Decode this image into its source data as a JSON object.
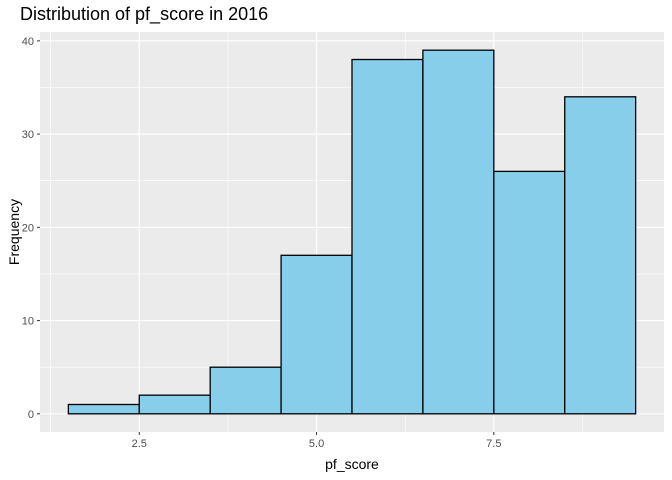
{
  "chart_data": {
    "type": "bar",
    "title": "Distribution of pf_score in 2016",
    "xlabel": "pf_score",
    "ylabel": "Frequency",
    "bins": [
      {
        "x0": 1.5,
        "x1": 2.5,
        "count": 1
      },
      {
        "x0": 2.5,
        "x1": 3.5,
        "count": 2
      },
      {
        "x0": 3.5,
        "x1": 4.5,
        "count": 5
      },
      {
        "x0": 4.5,
        "x1": 5.5,
        "count": 17
      },
      {
        "x0": 5.5,
        "x1": 6.5,
        "count": 38
      },
      {
        "x0": 6.5,
        "x1": 7.5,
        "count": 39
      },
      {
        "x0": 7.5,
        "x1": 8.5,
        "count": 26
      },
      {
        "x0": 8.5,
        "x1": 9.5,
        "count": 34
      }
    ],
    "xlim": [
      1.1,
      9.9
    ],
    "ylim": [
      -1.95,
      40.95
    ],
    "xticks": [
      2.5,
      5.0,
      7.5
    ],
    "xtick_labels": [
      "2.5",
      "5.0",
      "7.5"
    ],
    "yticks": [
      0,
      10,
      20,
      30,
      40
    ],
    "ytick_labels": [
      "0",
      "10",
      "20",
      "30",
      "40"
    ],
    "grid": true,
    "colors": {
      "panel": "#ebebeb",
      "grid_major": "#ffffff",
      "bar_fill": "#87ceeb",
      "bar_stroke": "#000000",
      "tick_text": "#4d4d4d",
      "tick_mark": "#333333"
    }
  }
}
